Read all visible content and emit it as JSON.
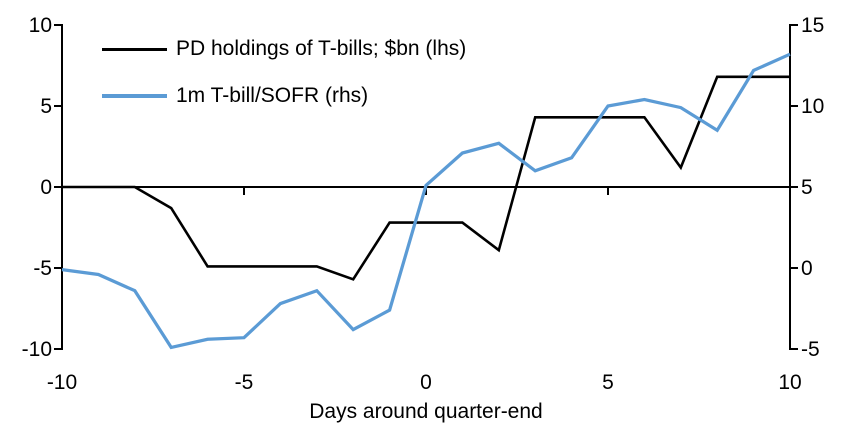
{
  "chart_data": {
    "type": "line",
    "title": "",
    "xlabel": "Days around quarter-end",
    "legend_position": "top-left-inside",
    "grid": false,
    "x": [
      -10,
      -9,
      -8,
      -7,
      -6,
      -5,
      -4,
      -3,
      -2,
      -1,
      0,
      1,
      2,
      3,
      4,
      5,
      6,
      7,
      8,
      9,
      10
    ],
    "series": [
      {
        "name": "PD holdings of T-bills; $bn (lhs)",
        "axis": "left",
        "color": "#000000",
        "values": [
          0,
          0,
          0,
          -1.3,
          -4.9,
          -4.9,
          -4.9,
          -4.9,
          -5.7,
          -2.2,
          -2.2,
          -2.2,
          -3.9,
          4.3,
          4.3,
          4.3,
          4.3,
          1.2,
          6.8,
          6.8,
          6.8
        ]
      },
      {
        "name": "1m T-bill/SOFR (rhs)",
        "axis": "right",
        "color": "#5B9BD5",
        "values": [
          -0.1,
          -0.4,
          -1.4,
          -4.9,
          -4.4,
          -4.3,
          -2.2,
          -1.4,
          -3.8,
          -2.6,
          5.1,
          7.1,
          7.7,
          6.0,
          6.8,
          10.0,
          10.4,
          9.9,
          8.5,
          12.2,
          13.2
        ]
      }
    ],
    "left_axis": {
      "range": [
        -10,
        10
      ],
      "ticks": [
        10,
        5,
        0,
        -5,
        -10
      ]
    },
    "right_axis": {
      "range": [
        -5,
        15
      ],
      "ticks": [
        15,
        10,
        5,
        0,
        -5
      ]
    },
    "x_axis": {
      "range": [
        -10,
        10
      ],
      "ticks": [
        -10,
        -5,
        0,
        5,
        10
      ]
    }
  }
}
